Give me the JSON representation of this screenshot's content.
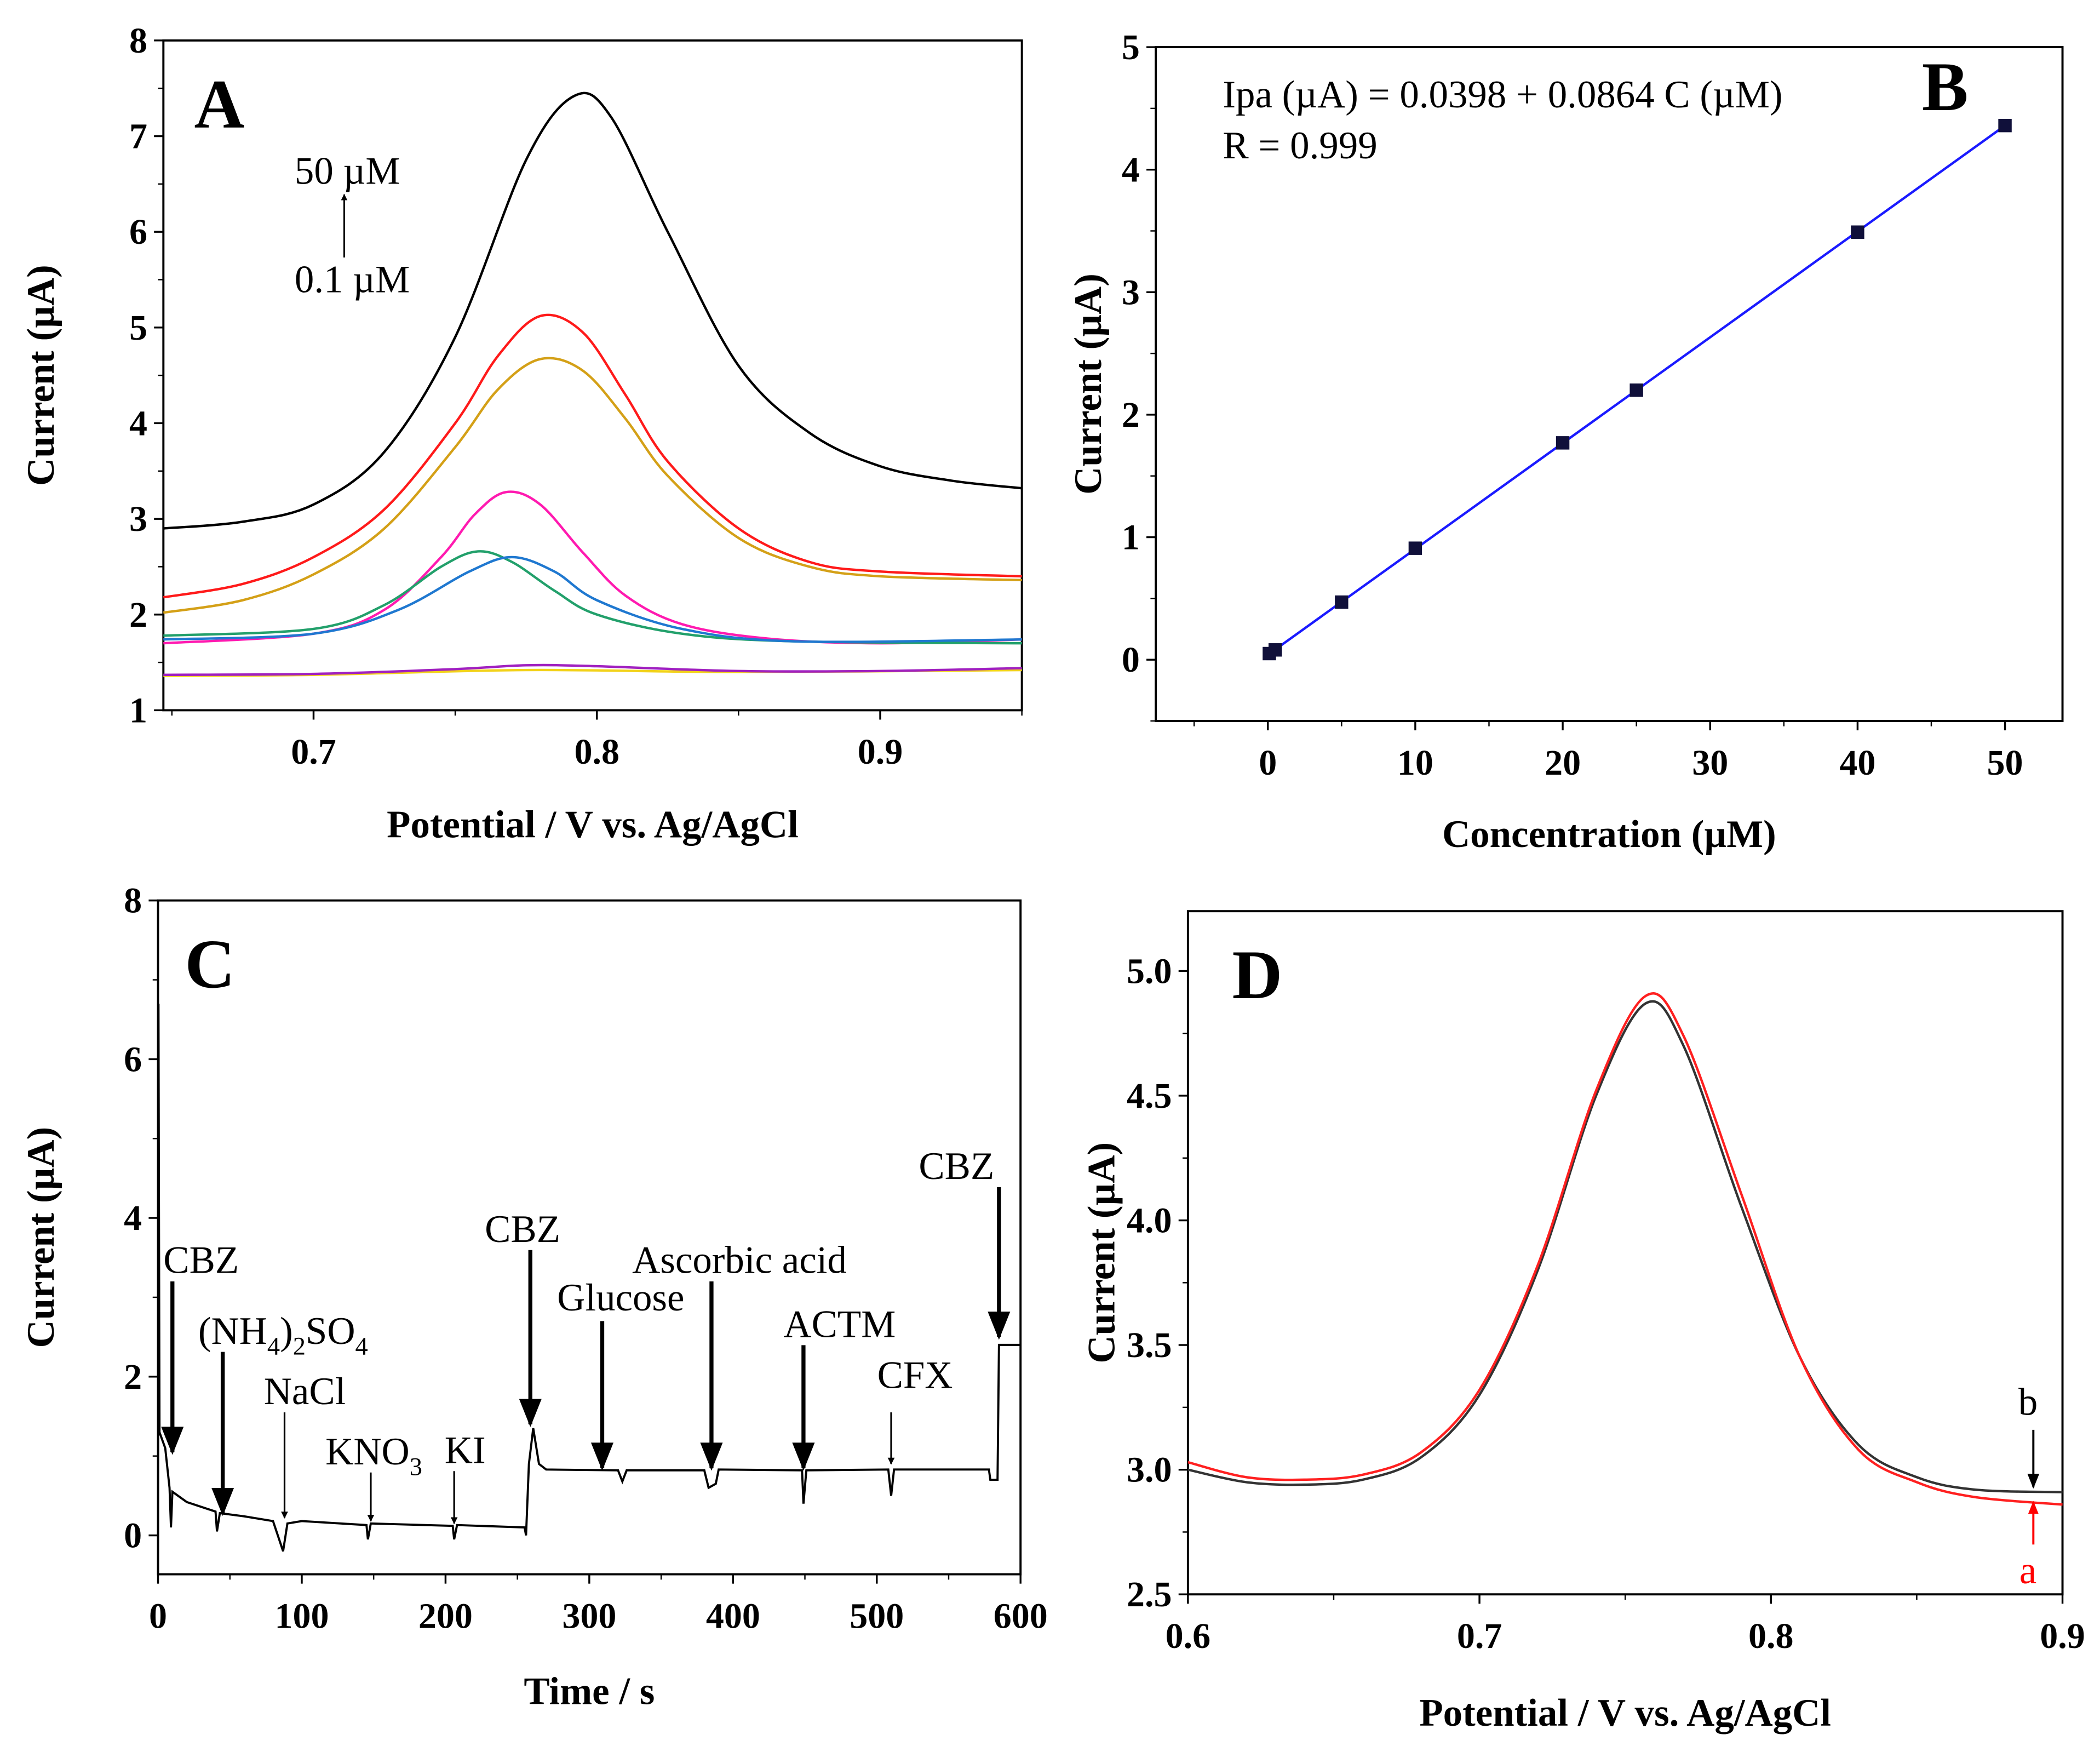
{
  "chart_data": [
    {
      "panel": "A",
      "type": "line",
      "panel_label": "A",
      "xlabel": "Potential  / V vs. Ag/AgCl",
      "ylabel": "Current (µA)",
      "xlim": [
        0.647,
        0.95
      ],
      "ylim": [
        1,
        8
      ],
      "xticks": [
        "0.7",
        "0.8",
        "0.9"
      ],
      "yticks": [
        "1",
        "2",
        "3",
        "4",
        "5",
        "6",
        "7",
        "8"
      ],
      "annotations": {
        "top": "50 µM",
        "bottom": "0.1 µM"
      },
      "series": [
        {
          "name": "50 µM",
          "color": "#000000",
          "points": [
            [
              0.647,
              2.9
            ],
            [
              0.675,
              2.97
            ],
            [
              0.7,
              3.15
            ],
            [
              0.725,
              3.7
            ],
            [
              0.75,
              4.9
            ],
            [
              0.775,
              6.75
            ],
            [
              0.792,
              7.42
            ],
            [
              0.805,
              7.2
            ],
            [
              0.825,
              6.0
            ],
            [
              0.85,
              4.6
            ],
            [
              0.875,
              3.9
            ],
            [
              0.9,
              3.55
            ],
            [
              0.925,
              3.4
            ],
            [
              0.95,
              3.32
            ]
          ]
        },
        {
          "name": "curve-red",
          "color": "#ff1a1a",
          "points": [
            [
              0.647,
              2.18
            ],
            [
              0.675,
              2.32
            ],
            [
              0.7,
              2.6
            ],
            [
              0.725,
              3.1
            ],
            [
              0.75,
              4.0
            ],
            [
              0.765,
              4.7
            ],
            [
              0.78,
              5.12
            ],
            [
              0.795,
              4.95
            ],
            [
              0.81,
              4.3
            ],
            [
              0.825,
              3.6
            ],
            [
              0.85,
              2.9
            ],
            [
              0.875,
              2.55
            ],
            [
              0.9,
              2.45
            ],
            [
              0.95,
              2.4
            ]
          ]
        },
        {
          "name": "curve-orange",
          "color": "#d4a017",
          "points": [
            [
              0.647,
              2.02
            ],
            [
              0.675,
              2.15
            ],
            [
              0.7,
              2.42
            ],
            [
              0.725,
              2.9
            ],
            [
              0.75,
              3.75
            ],
            [
              0.765,
              4.35
            ],
            [
              0.78,
              4.67
            ],
            [
              0.795,
              4.55
            ],
            [
              0.81,
              4.05
            ],
            [
              0.825,
              3.45
            ],
            [
              0.85,
              2.8
            ],
            [
              0.875,
              2.5
            ],
            [
              0.9,
              2.4
            ],
            [
              0.95,
              2.36
            ]
          ]
        },
        {
          "name": "curve-magenta",
          "color": "#ff1ab0",
          "points": [
            [
              0.647,
              1.7
            ],
            [
              0.7,
              1.8
            ],
            [
              0.725,
              2.05
            ],
            [
              0.745,
              2.6
            ],
            [
              0.757,
              3.05
            ],
            [
              0.768,
              3.28
            ],
            [
              0.78,
              3.15
            ],
            [
              0.795,
              2.65
            ],
            [
              0.81,
              2.2
            ],
            [
              0.83,
              1.9
            ],
            [
              0.86,
              1.75
            ],
            [
              0.9,
              1.7
            ],
            [
              0.95,
              1.74
            ]
          ]
        },
        {
          "name": "curve-green",
          "color": "#22a06b",
          "points": [
            [
              0.647,
              1.78
            ],
            [
              0.7,
              1.85
            ],
            [
              0.725,
              2.1
            ],
            [
              0.745,
              2.5
            ],
            [
              0.758,
              2.66
            ],
            [
              0.77,
              2.55
            ],
            [
              0.785,
              2.25
            ],
            [
              0.8,
              2.0
            ],
            [
              0.83,
              1.8
            ],
            [
              0.87,
              1.72
            ],
            [
              0.95,
              1.7
            ]
          ]
        },
        {
          "name": "curve-blue",
          "color": "#1f78d0",
          "points": [
            [
              0.647,
              1.74
            ],
            [
              0.7,
              1.8
            ],
            [
              0.73,
              2.05
            ],
            [
              0.755,
              2.45
            ],
            [
              0.77,
              2.6
            ],
            [
              0.785,
              2.45
            ],
            [
              0.8,
              2.15
            ],
            [
              0.83,
              1.85
            ],
            [
              0.87,
              1.72
            ],
            [
              0.95,
              1.74
            ]
          ]
        },
        {
          "name": "curve-yellow",
          "color": "#f2d21a",
          "points": [
            [
              0.647,
              1.36
            ],
            [
              0.7,
              1.37
            ],
            [
              0.775,
              1.42
            ],
            [
              0.85,
              1.4
            ],
            [
              0.95,
              1.42
            ]
          ]
        },
        {
          "name": "0.1 µM",
          "color": "#a020c0",
          "points": [
            [
              0.647,
              1.37
            ],
            [
              0.7,
              1.38
            ],
            [
              0.75,
              1.43
            ],
            [
              0.775,
              1.47
            ],
            [
              0.8,
              1.46
            ],
            [
              0.85,
              1.41
            ],
            [
              0.9,
              1.41
            ],
            [
              0.95,
              1.44
            ]
          ]
        }
      ]
    },
    {
      "panel": "B",
      "type": "scatter",
      "panel_label": "B",
      "xlabel": "Concentration (µM)",
      "ylabel": "Current (µA)",
      "xlim": [
        -7.6,
        53.9
      ],
      "ylim": [
        -0.5,
        5
      ],
      "xticks": [
        "0",
        "10",
        "20",
        "30",
        "40",
        "50"
      ],
      "yticks": [
        "0",
        "1",
        "2",
        "3",
        "4",
        "5"
      ],
      "equation": "Ipa (µA) = 0.0398 + 0.0864 C (µM)",
      "r_value": "R = 0.999",
      "fit": {
        "intercept": 0.0398,
        "slope": 0.0864,
        "color": "#1a1aff"
      },
      "x": [
        0.1,
        0.5,
        5,
        10,
        20,
        25,
        40,
        50
      ],
      "y": [
        0.05,
        0.08,
        0.47,
        0.91,
        1.77,
        2.2,
        3.49,
        4.36
      ]
    },
    {
      "panel": "C",
      "type": "line",
      "panel_label": "C",
      "xlabel": "Time / s",
      "ylabel": "Current (µA)",
      "xlim": [
        0,
        600
      ],
      "ylim": [
        -0.49,
        8
      ],
      "xticks": [
        "0",
        "100",
        "200",
        "300",
        "400",
        "500",
        "600"
      ],
      "yticks": [
        "0",
        "2",
        "4",
        "6",
        "8"
      ],
      "series": [
        {
          "name": "amperometric-trace",
          "color": "#000000",
          "points": [
            [
              0,
              -0.49
            ],
            [
              0.3,
              6.7
            ],
            [
              1,
              1.3
            ],
            [
              5,
              1.1
            ],
            [
              8,
              0.6
            ],
            [
              9,
              0.1
            ],
            [
              10,
              0.55
            ],
            [
              20,
              0.42
            ],
            [
              40,
              0.3
            ],
            [
              41,
              0.05
            ],
            [
              43,
              0.28
            ],
            [
              60,
              0.24
            ],
            [
              80,
              0.18
            ],
            [
              87,
              -0.2
            ],
            [
              90,
              0.15
            ],
            [
              100,
              0.18
            ],
            [
              145,
              0.13
            ],
            [
              146,
              -0.05
            ],
            [
              148,
              0.15
            ],
            [
              205,
              0.12
            ],
            [
              206,
              -0.05
            ],
            [
              208,
              0.13
            ],
            [
              255,
              0.1
            ],
            [
              256,
              0.0
            ],
            [
              258,
              0.9
            ],
            [
              261,
              1.35
            ],
            [
              265,
              0.9
            ],
            [
              270,
              0.83
            ],
            [
              320,
              0.82
            ],
            [
              323,
              0.68
            ],
            [
              326,
              0.82
            ],
            [
              380,
              0.82
            ],
            [
              383,
              0.6
            ],
            [
              388,
              0.65
            ],
            [
              390,
              0.83
            ],
            [
              448,
              0.82
            ],
            [
              449,
              0.4
            ],
            [
              451,
              0.82
            ],
            [
              508,
              0.83
            ],
            [
              510,
              0.5
            ],
            [
              512,
              0.83
            ],
            [
              578,
              0.83
            ],
            [
              579,
              0.7
            ],
            [
              584,
              0.7
            ],
            [
              585,
              2.4
            ],
            [
              600,
              2.4
            ]
          ]
        }
      ],
      "annotations": [
        {
          "label": [
            "CBZ"
          ],
          "x": 10,
          "y_label": 3.5,
          "y_from": 3.2,
          "y_to": 1.05,
          "bold": true
        },
        {
          "label": [
            "(NH",
            "4",
            ")",
            "2",
            "SO",
            "4"
          ],
          "x": 45,
          "y_label": 2.6,
          "y_from": 2.45,
          "y_to": 0.28,
          "bold": true
        },
        {
          "label": [
            "NaCl"
          ],
          "x": 88,
          "y_label": 1.75,
          "y_from": 1.55,
          "y_to": 0.22,
          "bold": false
        },
        {
          "label": [
            "KNO",
            "3"
          ],
          "x": 148,
          "y_label": 1.2,
          "y_from": 1.2,
          "y_to": 0.18,
          "bold": false
        },
        {
          "label": [
            "KI"
          ],
          "x": 206,
          "y_label": 0.95,
          "y_from": 1.0,
          "y_to": 0.15,
          "bold": false
        },
        {
          "label": [
            "CBZ"
          ],
          "x": 259,
          "y_label": 3.9,
          "y_from": 3.6,
          "y_to": 1.4,
          "bold": true
        },
        {
          "label": [
            "Glucose"
          ],
          "x": 309,
          "y_label": 2.9,
          "y_from": 2.7,
          "y_to": 0.85,
          "bold": true
        },
        {
          "label": [
            "Ascorbic acid"
          ],
          "x": 385,
          "y_label": 3.3,
          "y_from": 3.2,
          "y_to": 0.85,
          "bold": true
        },
        {
          "label": [
            "ACTM"
          ],
          "x": 449,
          "y_label": 2.4,
          "y_from": 2.5,
          "y_to": 0.85,
          "bold": true
        },
        {
          "label": [
            "CFX"
          ],
          "x": 510,
          "y_label": 1.75,
          "y_from": 1.55,
          "y_to": 0.9,
          "bold": false
        },
        {
          "label": [
            "CBZ"
          ],
          "x": 585,
          "y_label": 4.6,
          "y_from": 4.5,
          "y_to": 2.5,
          "bold": true
        }
      ]
    },
    {
      "panel": "D",
      "type": "line",
      "panel_label": "D",
      "xlabel": "Potential / V vs. Ag/AgCl",
      "ylabel": "Current (µA)",
      "xlim": [
        0.6,
        0.9
      ],
      "ylim": [
        2.5,
        5.24
      ],
      "xticks": [
        "0.6",
        "0.7",
        "0.8",
        "0.9"
      ],
      "yticks": [
        "2.5",
        "3.0",
        "3.5",
        "4.0",
        "4.5",
        "5.0"
      ],
      "series": [
        {
          "name": "b",
          "color": "#333333",
          "points": [
            [
              0.6,
              3.0
            ],
            [
              0.62,
              2.95
            ],
            [
              0.64,
              2.94
            ],
            [
              0.66,
              2.96
            ],
            [
              0.68,
              3.05
            ],
            [
              0.7,
              3.3
            ],
            [
              0.72,
              3.8
            ],
            [
              0.74,
              4.5
            ],
            [
              0.757,
              4.87
            ],
            [
              0.77,
              4.7
            ],
            [
              0.79,
              4.05
            ],
            [
              0.81,
              3.45
            ],
            [
              0.83,
              3.1
            ],
            [
              0.85,
              2.97
            ],
            [
              0.87,
              2.92
            ],
            [
              0.9,
              2.91
            ]
          ]
        },
        {
          "name": "a",
          "color": "#ff2020",
          "points": [
            [
              0.6,
              3.03
            ],
            [
              0.62,
              2.97
            ],
            [
              0.64,
              2.96
            ],
            [
              0.66,
              2.98
            ],
            [
              0.68,
              3.07
            ],
            [
              0.7,
              3.32
            ],
            [
              0.72,
              3.82
            ],
            [
              0.74,
              4.52
            ],
            [
              0.757,
              4.9
            ],
            [
              0.77,
              4.74
            ],
            [
              0.79,
              4.1
            ],
            [
              0.81,
              3.45
            ],
            [
              0.83,
              3.08
            ],
            [
              0.85,
              2.95
            ],
            [
              0.87,
              2.89
            ],
            [
              0.9,
              2.86
            ]
          ]
        }
      ],
      "annotations": [
        {
          "label": "b",
          "color": "#000000",
          "x": 0.89,
          "y_label": 3.22,
          "y_from": 3.16,
          "y_to": 2.93
        },
        {
          "label": "a",
          "color": "#ff0000",
          "x": 0.89,
          "y_label": 2.62,
          "y_from": 2.7,
          "y_to": 2.87
        }
      ]
    }
  ]
}
